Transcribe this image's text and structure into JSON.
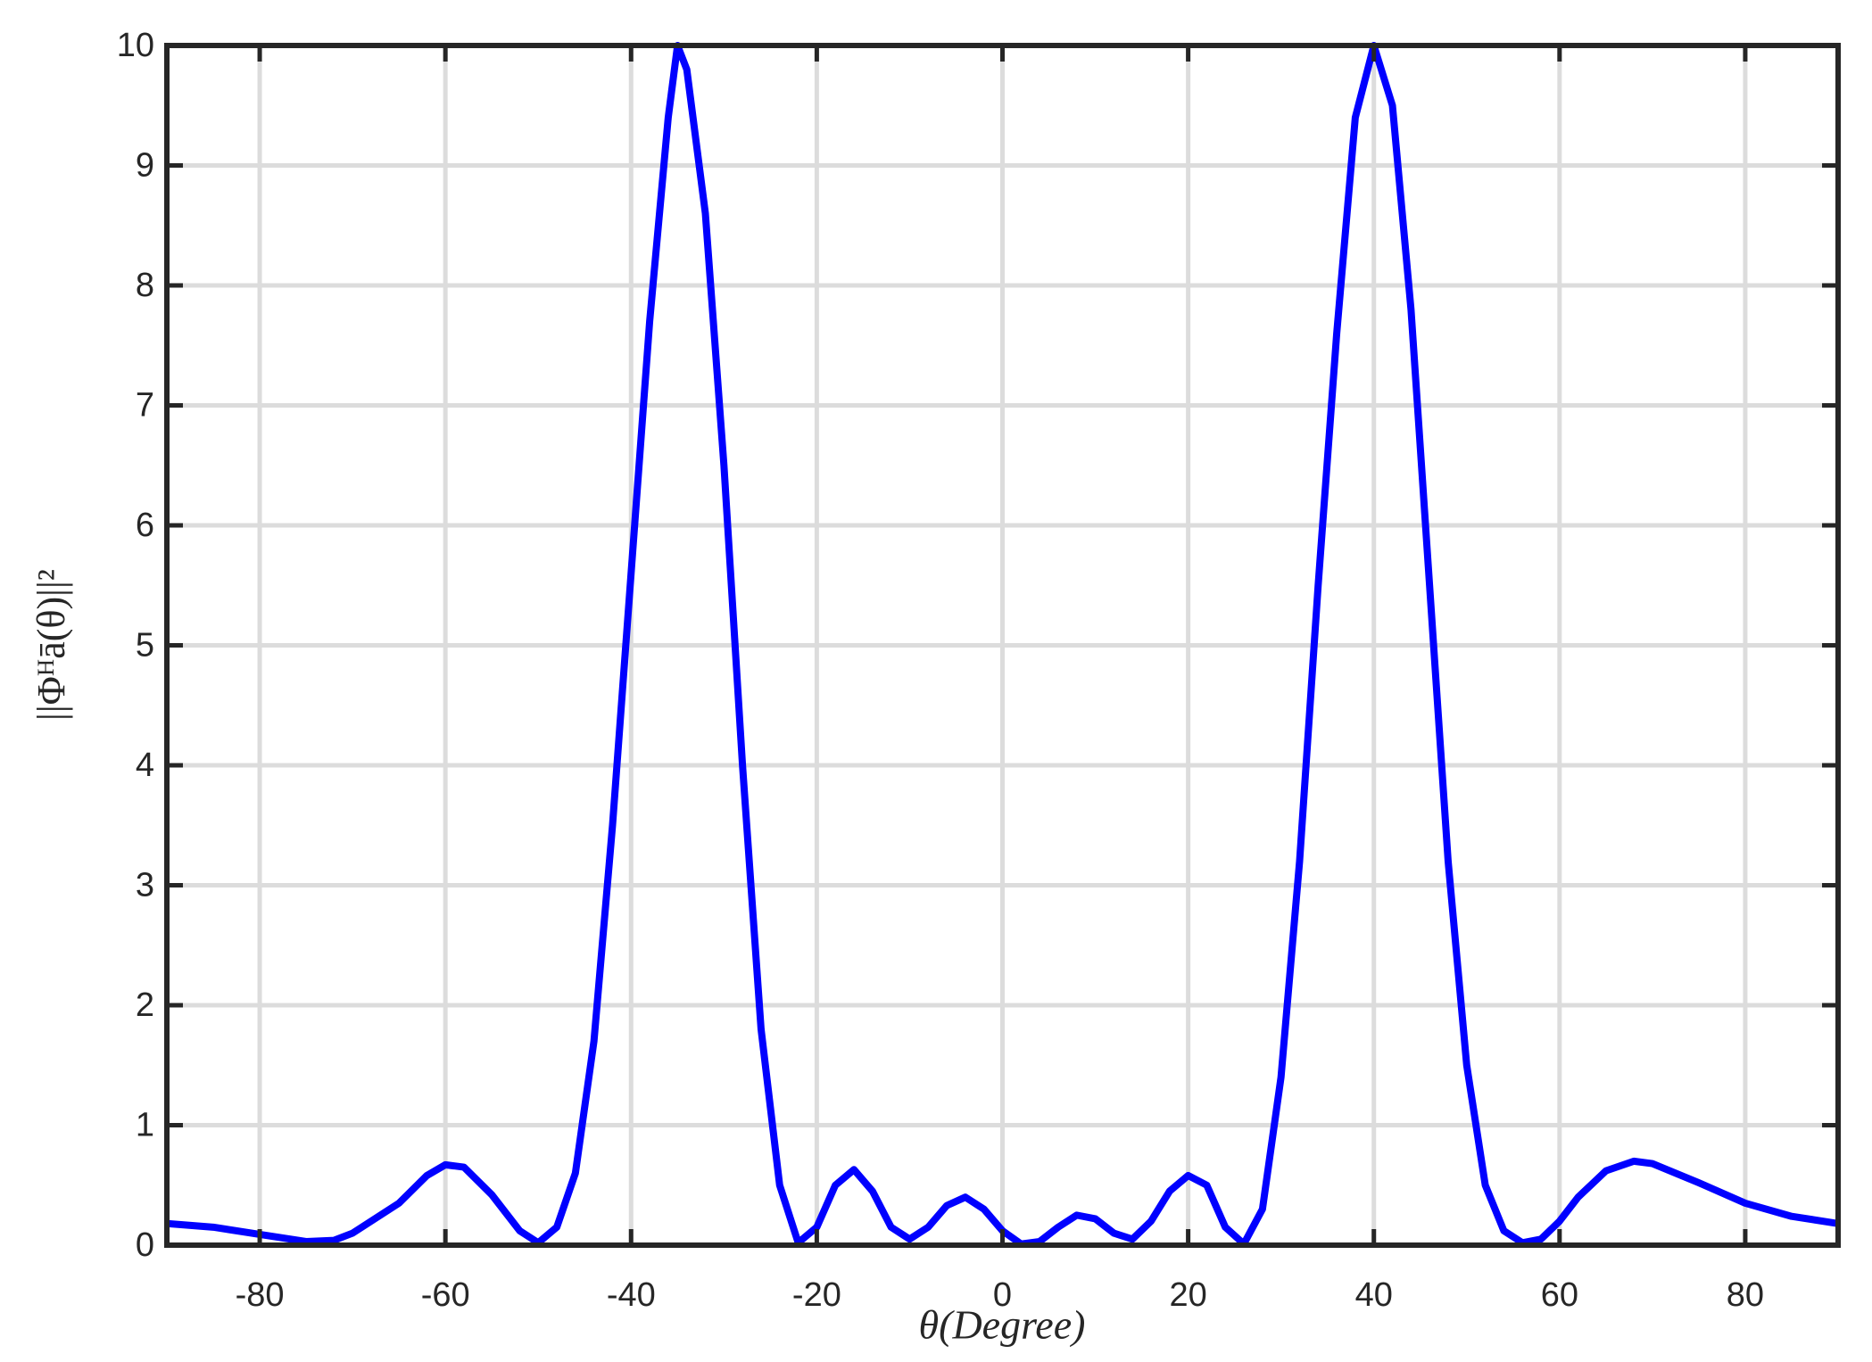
{
  "chart_data": {
    "type": "line",
    "xlabel": "θ(Degree)",
    "ylabel": "||Φᴴā(θ)||²",
    "x": [
      -90,
      -85,
      -80,
      -75,
      -72,
      -70,
      -65,
      -62,
      -60,
      -58,
      -55,
      -52,
      -50,
      -48,
      -46,
      -44,
      -42,
      -40,
      -38,
      -36,
      -35,
      -34,
      -32,
      -30,
      -28,
      -26,
      -24,
      -22,
      -20,
      -18,
      -16,
      -14,
      -12,
      -10,
      -8,
      -6,
      -4,
      -2,
      0,
      2,
      4,
      6,
      8,
      10,
      12,
      14,
      16,
      18,
      20,
      22,
      24,
      26,
      28,
      30,
      32,
      34,
      36,
      38,
      40,
      42,
      44,
      46,
      48,
      50,
      52,
      54,
      56,
      58,
      60,
      62,
      65,
      68,
      70,
      75,
      80,
      85,
      90
    ],
    "series": [
      {
        "name": "line",
        "color": "#0000ff",
        "values": [
          0.18,
          0.15,
          0.09,
          0.03,
          0.04,
          0.1,
          0.35,
          0.58,
          0.67,
          0.65,
          0.42,
          0.12,
          0.02,
          0.15,
          0.6,
          1.7,
          3.5,
          5.6,
          7.7,
          9.4,
          10.0,
          9.8,
          8.6,
          6.5,
          4.0,
          1.8,
          0.5,
          0.02,
          0.15,
          0.5,
          0.63,
          0.45,
          0.15,
          0.05,
          0.15,
          0.33,
          0.4,
          0.3,
          0.12,
          0.01,
          0.03,
          0.15,
          0.25,
          0.22,
          0.1,
          0.05,
          0.2,
          0.45,
          0.58,
          0.5,
          0.15,
          0.01,
          0.3,
          1.4,
          3.2,
          5.5,
          7.6,
          9.4,
          10.0,
          9.5,
          7.8,
          5.5,
          3.2,
          1.5,
          0.5,
          0.12,
          0.02,
          0.05,
          0.2,
          0.4,
          0.62,
          0.7,
          0.68,
          0.52,
          0.35,
          0.24,
          0.18
        ]
      }
    ],
    "xlim": [
      -90,
      90
    ],
    "ylim": [
      0,
      10
    ],
    "xticks": [
      -80,
      -60,
      -40,
      -20,
      0,
      20,
      40,
      60,
      80
    ],
    "yticks": [
      0,
      1,
      2,
      3,
      4,
      5,
      6,
      7,
      8,
      9,
      10
    ],
    "grid": true
  }
}
